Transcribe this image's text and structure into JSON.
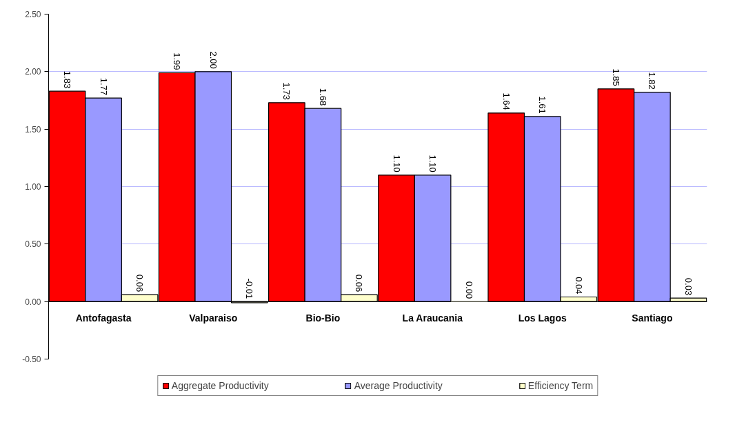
{
  "chart_data": {
    "type": "bar",
    "categories": [
      "Antofagasta",
      "Valparaiso",
      "Bio-Bio",
      "La Araucania",
      "Los Lagos",
      "Santiago"
    ],
    "series": [
      {
        "name": "Aggregate Productivity",
        "color": "#ff0000",
        "values": [
          1.83,
          1.99,
          1.73,
          1.1,
          1.64,
          1.85
        ],
        "value_labels": [
          "1.83",
          "1.99",
          "1.73",
          "1.10",
          "1.64",
          "1.85"
        ]
      },
      {
        "name": "Average Productivity",
        "color": "#9999ff",
        "values": [
          1.77,
          2.0,
          1.68,
          1.1,
          1.61,
          1.82
        ],
        "value_labels": [
          "1.77",
          "2.00",
          "1.68",
          "1.10",
          "1.61",
          "1.82"
        ]
      },
      {
        "name": "Efficiency Term",
        "color": "#ffffcc",
        "values": [
          0.06,
          -0.01,
          0.06,
          0.0,
          0.04,
          0.03
        ],
        "value_labels": [
          "0.06",
          "-0.01",
          "0.06",
          "0.00",
          "0.04",
          "0.03"
        ]
      }
    ],
    "ylim": [
      -0.5,
      2.5
    ],
    "yticks": [
      {
        "value": -0.5,
        "label": "-0.50"
      },
      {
        "value": 0,
        "label": "0.00"
      },
      {
        "value": 0.5,
        "label": "0.50"
      },
      {
        "value": 1,
        "label": "1.00"
      },
      {
        "value": 1.5,
        "label": "1.50"
      },
      {
        "value": 2,
        "label": "2.00"
      },
      {
        "value": 2.5,
        "label": "2.50"
      }
    ],
    "grid": "y",
    "legend": "bottom"
  }
}
